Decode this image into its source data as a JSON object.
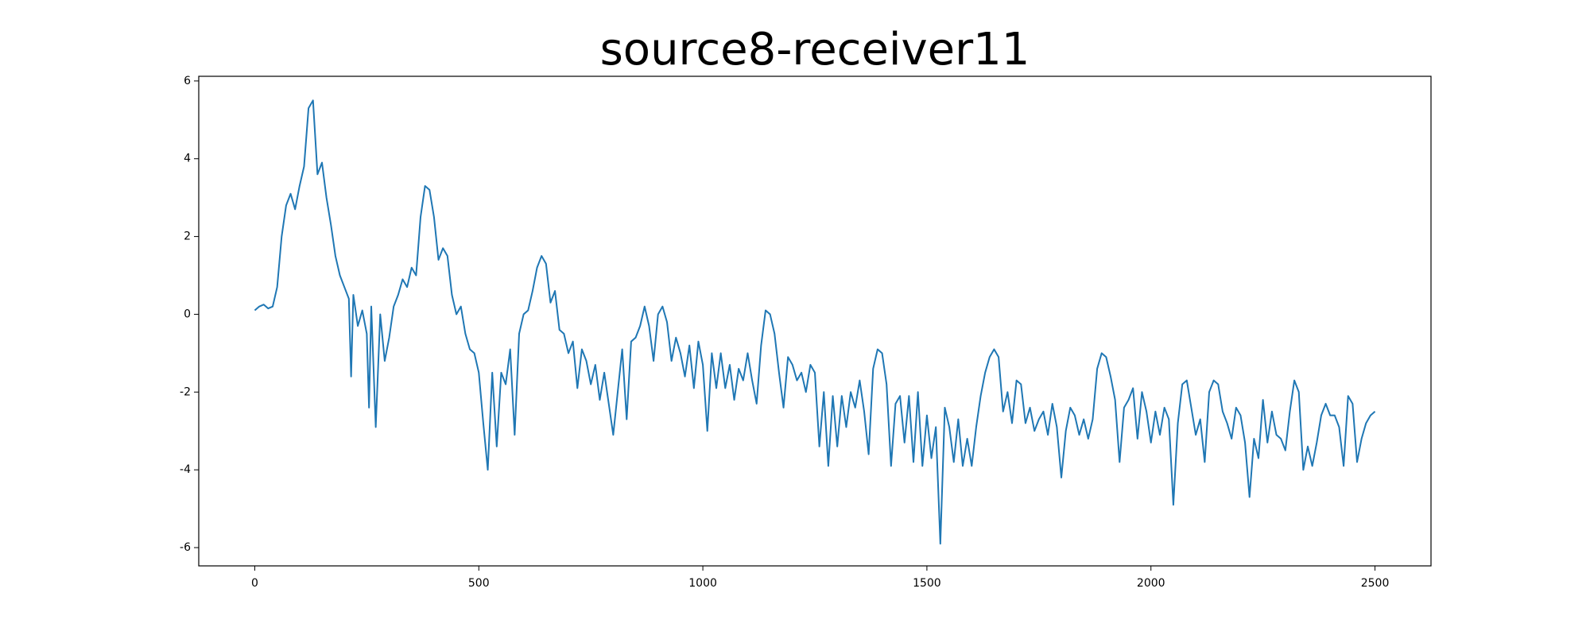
{
  "chart_data": {
    "type": "line",
    "title": "source8-receiver11",
    "x": [
      0,
      10,
      20,
      30,
      40,
      50,
      60,
      70,
      80,
      90,
      100,
      110,
      120,
      130,
      140,
      150,
      160,
      170,
      180,
      190,
      200,
      210,
      215,
      220,
      230,
      240,
      250,
      255,
      260,
      270,
      280,
      290,
      300,
      310,
      320,
      330,
      340,
      350,
      360,
      370,
      380,
      390,
      400,
      410,
      420,
      430,
      440,
      450,
      460,
      470,
      480,
      490,
      500,
      510,
      520,
      530,
      540,
      550,
      560,
      570,
      580,
      590,
      600,
      610,
      620,
      630,
      640,
      650,
      660,
      670,
      680,
      690,
      700,
      710,
      720,
      730,
      740,
      750,
      760,
      770,
      780,
      790,
      800,
      810,
      820,
      830,
      840,
      850,
      860,
      870,
      880,
      890,
      900,
      910,
      920,
      930,
      940,
      950,
      960,
      970,
      980,
      990,
      1000,
      1010,
      1020,
      1030,
      1040,
      1050,
      1060,
      1070,
      1080,
      1090,
      1100,
      1110,
      1120,
      1130,
      1140,
      1150,
      1160,
      1170,
      1180,
      1190,
      1200,
      1210,
      1220,
      1230,
      1240,
      1250,
      1260,
      1270,
      1280,
      1290,
      1300,
      1310,
      1320,
      1330,
      1340,
      1350,
      1360,
      1370,
      1380,
      1390,
      1400,
      1410,
      1420,
      1430,
      1440,
      1450,
      1460,
      1470,
      1480,
      1490,
      1500,
      1510,
      1520,
      1530,
      1540,
      1550,
      1560,
      1570,
      1580,
      1590,
      1600,
      1610,
      1620,
      1630,
      1640,
      1650,
      1660,
      1670,
      1680,
      1690,
      1700,
      1710,
      1720,
      1730,
      1740,
      1750,
      1760,
      1770,
      1780,
      1790,
      1800,
      1810,
      1820,
      1830,
      1840,
      1850,
      1860,
      1870,
      1880,
      1890,
      1900,
      1910,
      1920,
      1930,
      1940,
      1950,
      1960,
      1970,
      1980,
      1990,
      2000,
      2010,
      2020,
      2030,
      2040,
      2050,
      2060,
      2070,
      2080,
      2090,
      2100,
      2110,
      2120,
      2130,
      2140,
      2150,
      2160,
      2170,
      2180,
      2190,
      2200,
      2210,
      2220,
      2230,
      2240,
      2250,
      2260,
      2270,
      2280,
      2290,
      2300,
      2310,
      2320,
      2330,
      2340,
      2350,
      2360,
      2370,
      2380,
      2390,
      2400,
      2410,
      2420,
      2430,
      2440,
      2450,
      2460,
      2470,
      2480,
      2490,
      2500
    ],
    "values": [
      0.1,
      0.2,
      0.25,
      0.15,
      0.2,
      0.7,
      2.0,
      2.8,
      3.1,
      2.7,
      3.3,
      3.8,
      5.3,
      5.5,
      3.6,
      3.9,
      3.0,
      2.3,
      1.5,
      1.0,
      0.7,
      0.4,
      -1.6,
      0.5,
      -0.3,
      0.1,
      -0.5,
      -2.4,
      0.2,
      -2.9,
      0,
      -1.2,
      -0.6,
      0.2,
      0.5,
      0.9,
      0.7,
      1.2,
      1.0,
      2.5,
      3.3,
      3.2,
      2.5,
      1.4,
      1.7,
      1.5,
      0.5,
      0,
      0.2,
      -0.5,
      -0.9,
      -1,
      -1.5,
      -2.8,
      -4,
      -1.5,
      -3.4,
      -1.5,
      -1.8,
      -0.9,
      -3.1,
      -0.5,
      0,
      0.1,
      0.6,
      1.2,
      1.5,
      1.3,
      0.3,
      0.6,
      -0.4,
      -0.5,
      -1,
      -0.7,
      -1.9,
      -0.9,
      -1.2,
      -1.8,
      -1.3,
      -2.2,
      -1.5,
      -2.3,
      -3.1,
      -2,
      -0.9,
      -2.7,
      -0.7,
      -0.6,
      -0.3,
      0.2,
      -0.3,
      -1.2,
      0,
      0.2,
      -0.2,
      -1.2,
      -0.6,
      -1.0,
      -1.6,
      -0.8,
      -1.9,
      -0.7,
      -1.3,
      -3.0,
      -1,
      -1.9,
      -1,
      -1.9,
      -1.3,
      -2.2,
      -1.4,
      -1.7,
      -1,
      -1.7,
      -2.3,
      -0.8,
      0.1,
      0,
      -0.5,
      -1.5,
      -2.4,
      -1.1,
      -1.3,
      -1.7,
      -1.5,
      -2.0,
      -1.3,
      -1.5,
      -3.4,
      -2.0,
      -3.9,
      -2.1,
      -3.4,
      -2.1,
      -2.9,
      -2.0,
      -2.4,
      -1.7,
      -2.5,
      -3.6,
      -1.4,
      -0.9,
      -1.0,
      -1.8,
      -3.9,
      -2.3,
      -2.1,
      -3.3,
      -2.1,
      -3.8,
      -2.0,
      -3.9,
      -2.6,
      -3.7,
      -2.9,
      -5.9,
      -2.4,
      -2.9,
      -3.8,
      -2.7,
      -3.9,
      -3.2,
      -3.9,
      -2.9,
      -2.1,
      -1.5,
      -1.1,
      -0.9,
      -1.1,
      -2.5,
      -2.0,
      -2.8,
      -1.7,
      -1.8,
      -2.8,
      -2.4,
      -3.0,
      -2.7,
      -2.5,
      -3.1,
      -2.3,
      -2.9,
      -4.2,
      -3.0,
      -2.4,
      -2.6,
      -3.1,
      -2.7,
      -3.2,
      -2.7,
      -1.4,
      -1.0,
      -1.1,
      -1.6,
      -2.2,
      -3.8,
      -2.4,
      -2.2,
      -1.9,
      -3.2,
      -2.0,
      -2.5,
      -3.3,
      -2.5,
      -3.1,
      -2.4,
      -2.7,
      -4.9,
      -2.8,
      -1.8,
      -1.7,
      -2.4,
      -3.1,
      -2.7,
      -3.8,
      -2.0,
      -1.7,
      -1.8,
      -2.5,
      -2.8,
      -3.2,
      -2.4,
      -2.6,
      -3.3,
      -4.7,
      -3.2,
      -3.7,
      -2.2,
      -3.3,
      -2.5,
      -3.1,
      -3.2,
      -3.5,
      -2.5,
      -1.7,
      -2.0,
      -4.0,
      -3.4,
      -3.9,
      -3.3,
      -2.6,
      -2.3,
      -2.6,
      -2.6,
      -2.9,
      -3.9,
      -2.1,
      -2.3,
      -3.8,
      -3.2,
      -2.8,
      -2.6,
      -2.5
    ],
    "color": "#1f77b4",
    "xlim": [
      -125,
      2625
    ],
    "xticks": [
      0,
      500,
      1000,
      1500,
      2000,
      2500
    ],
    "ylim": [
      -6.47,
      6.12
    ],
    "yticks": [
      -6,
      -4,
      -2,
      0,
      2,
      4,
      6
    ]
  }
}
